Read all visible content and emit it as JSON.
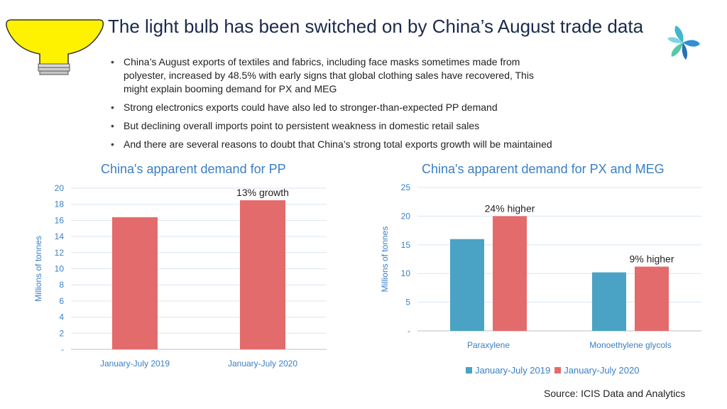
{
  "slide": {
    "title": "The light bulb has been switched on by China’s August trade data",
    "bullets": [
      "China’s August exports of textiles and fabrics, including face masks sometimes made from polyester, increased by 48.5% with early signs that global clothing sales have recovered, This might explain booming demand for PX and MEG",
      "Strong electronics exports could have also led to stronger-than-expected PP demand",
      "But declining overall imports point to persistent weakness in domestic retail sales",
      "And there are several reasons to doubt that China’s strong total exports growth will be maintained"
    ],
    "source": "Source: ICIS Data and Analytics",
    "icons": [
      "light-bulb-icon",
      "icis-logo-icon"
    ]
  },
  "chart_data": [
    {
      "type": "bar",
      "title": "China's apparent demand for PP",
      "ylabel": "Millions of tonnes",
      "xlabel": "",
      "categories": [
        "January-July 2019",
        "January-July 2020"
      ],
      "values": [
        16.4,
        18.5
      ],
      "ylim": [
        0,
        20
      ],
      "yticks": [
        "-",
        "2",
        "4",
        "6",
        "8",
        "10",
        "12",
        "14",
        "16",
        "18",
        "20"
      ],
      "annotations": [
        {
          "category": "January-July 2020",
          "text": "13% growth"
        }
      ],
      "grid": true,
      "color": "#e46b6b"
    },
    {
      "type": "bar",
      "title": "China's apparent demand for PX and MEG",
      "ylabel": "Millions of tonnes",
      "xlabel": "",
      "categories": [
        "Paraxylene",
        "Monoethylene glycols"
      ],
      "series": [
        {
          "name": "January-July 2019",
          "values": [
            16.0,
            10.2
          ],
          "color": "#4aa3c4"
        },
        {
          "name": "January-July 2020",
          "values": [
            20.0,
            11.2
          ],
          "color": "#e46b6b"
        }
      ],
      "ylim": [
        0,
        25
      ],
      "yticks": [
        "-",
        "5",
        "10",
        "15",
        "20",
        "25"
      ],
      "annotations": [
        {
          "category": "Paraxylene",
          "text": "24% higher"
        },
        {
          "category": "Monoethylene glycols",
          "text": "9% higher"
        }
      ],
      "grid": true,
      "legend": "bottom"
    }
  ]
}
